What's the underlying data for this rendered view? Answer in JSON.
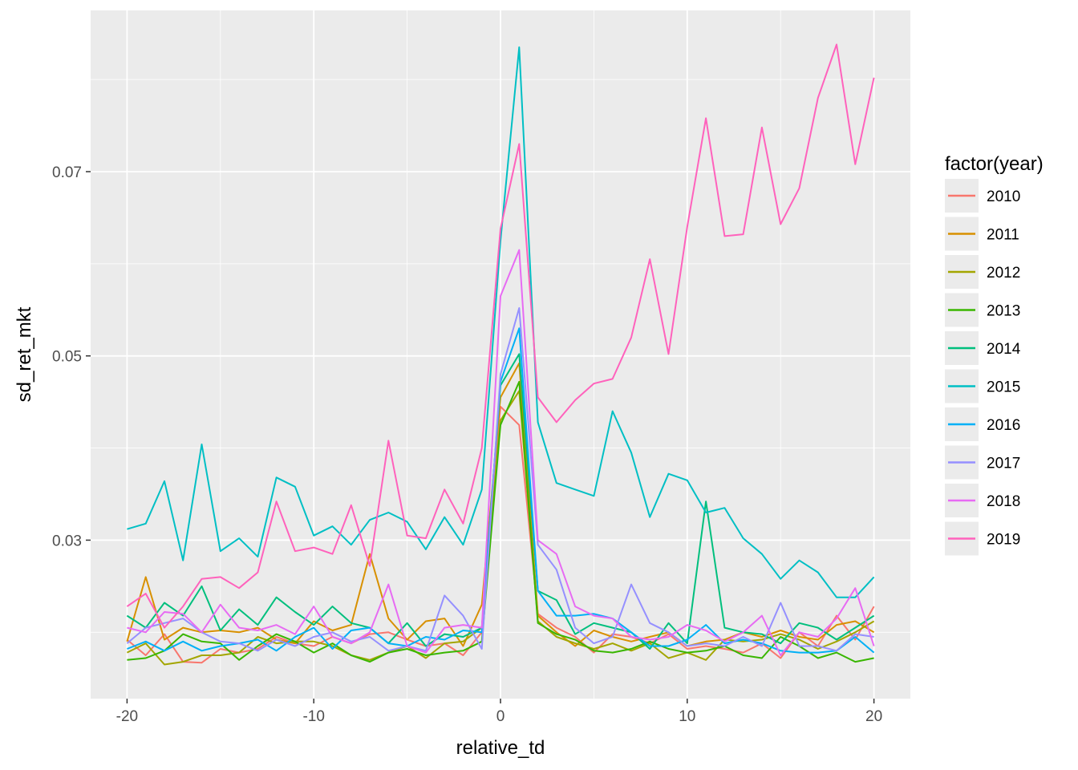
{
  "chart_data": {
    "type": "line",
    "title": "",
    "xlabel": "relative_td",
    "ylabel": "sd_ret_mkt",
    "xlim": [
      -21.95,
      21.95
    ],
    "ylim": [
      0.0128,
      0.0875
    ],
    "x_ticks": [
      -20,
      -10,
      0,
      10,
      20
    ],
    "x_tick_labels": [
      "-20",
      "-10",
      "0",
      "10",
      "20"
    ],
    "y_ticks": [
      0.03,
      0.05,
      0.07
    ],
    "y_tick_labels": [
      "0.03",
      "0.05",
      "0.07"
    ],
    "grid": true,
    "background": "#ebebeb",
    "legend": {
      "title": "factor(year)",
      "position": "right"
    },
    "x": [
      -20,
      -19,
      -18,
      -17,
      -16,
      -15,
      -14,
      -13,
      -12,
      -11,
      -10,
      -9,
      -8,
      -7,
      -6,
      -5,
      -4,
      -3,
      -2,
      -1,
      0,
      1,
      2,
      3,
      4,
      5,
      6,
      7,
      8,
      9,
      10,
      11,
      12,
      13,
      14,
      15,
      16,
      17,
      18,
      19,
      20
    ],
    "series": [
      {
        "name": "2010",
        "color": "#F8766D",
        "values": [
          0.0192,
          0.0175,
          0.0198,
          0.0168,
          0.0167,
          0.0182,
          0.0178,
          0.0182,
          0.0195,
          0.0188,
          0.0185,
          0.0195,
          0.0188,
          0.0198,
          0.02,
          0.0192,
          0.0185,
          0.0188,
          0.0175,
          0.02,
          0.0445,
          0.0425,
          0.022,
          0.0205,
          0.0195,
          0.0178,
          0.0198,
          0.0195,
          0.0188,
          0.0198,
          0.0182,
          0.0185,
          0.0182,
          0.0178,
          0.0188,
          0.0172,
          0.02,
          0.0185,
          0.0218,
          0.0192,
          0.0228
        ]
      },
      {
        "name": "2011",
        "color": "#D89000",
        "values": [
          0.019,
          0.026,
          0.0192,
          0.0205,
          0.02,
          0.0202,
          0.02,
          0.0205,
          0.0192,
          0.0188,
          0.0212,
          0.0202,
          0.0208,
          0.0285,
          0.0215,
          0.0192,
          0.0212,
          0.0215,
          0.0185,
          0.023,
          0.0455,
          0.0492,
          0.0218,
          0.02,
          0.0185,
          0.0202,
          0.0195,
          0.019,
          0.0195,
          0.02,
          0.0185,
          0.019,
          0.0192,
          0.02,
          0.0195,
          0.0202,
          0.0195,
          0.0192,
          0.0208,
          0.0212,
          0.02
        ]
      },
      {
        "name": "2012",
        "color": "#A3A500",
        "values": [
          0.0178,
          0.0188,
          0.0165,
          0.0168,
          0.0175,
          0.0175,
          0.0178,
          0.0195,
          0.0188,
          0.019,
          0.019,
          0.0185,
          0.0175,
          0.017,
          0.0178,
          0.0185,
          0.0172,
          0.0188,
          0.019,
          0.0205,
          0.043,
          0.0462,
          0.0212,
          0.0195,
          0.0188,
          0.0182,
          0.0188,
          0.018,
          0.0188,
          0.0172,
          0.0178,
          0.017,
          0.0192,
          0.019,
          0.0192,
          0.0198,
          0.0192,
          0.0182,
          0.019,
          0.02,
          0.0212
        ]
      },
      {
        "name": "2013",
        "color": "#39B600",
        "values": [
          0.017,
          0.0172,
          0.018,
          0.0198,
          0.019,
          0.0188,
          0.017,
          0.0185,
          0.0198,
          0.019,
          0.0178,
          0.0188,
          0.0175,
          0.0168,
          0.0178,
          0.0182,
          0.0175,
          0.0178,
          0.018,
          0.019,
          0.0425,
          0.0472,
          0.021,
          0.0198,
          0.0192,
          0.018,
          0.0178,
          0.0182,
          0.019,
          0.0182,
          0.0178,
          0.018,
          0.0185,
          0.0175,
          0.0172,
          0.0195,
          0.0185,
          0.0172,
          0.0178,
          0.0168,
          0.0172
        ]
      },
      {
        "name": "2014",
        "color": "#00BF7D",
        "values": [
          0.0218,
          0.0205,
          0.0232,
          0.0218,
          0.025,
          0.0202,
          0.0225,
          0.0208,
          0.0238,
          0.0222,
          0.0208,
          0.0228,
          0.021,
          0.0205,
          0.0188,
          0.021,
          0.0185,
          0.0198,
          0.0195,
          0.0205,
          0.0468,
          0.0502,
          0.0245,
          0.0235,
          0.0198,
          0.021,
          0.0205,
          0.02,
          0.0182,
          0.021,
          0.0188,
          0.0342,
          0.0205,
          0.02,
          0.0198,
          0.0188,
          0.021,
          0.0205,
          0.0192,
          0.0205,
          0.0218
        ]
      },
      {
        "name": "2015",
        "color": "#00BFC4",
        "values": [
          0.0312,
          0.0318,
          0.0364,
          0.0278,
          0.0404,
          0.0288,
          0.0302,
          0.0282,
          0.0368,
          0.0358,
          0.0305,
          0.0315,
          0.0295,
          0.0322,
          0.033,
          0.032,
          0.029,
          0.0325,
          0.0295,
          0.0355,
          0.0625,
          0.0835,
          0.0428,
          0.0362,
          0.0355,
          0.0348,
          0.044,
          0.0395,
          0.0325,
          0.0372,
          0.0365,
          0.033,
          0.0335,
          0.0302,
          0.0285,
          0.0258,
          0.0278,
          0.0265,
          0.0238,
          0.0238,
          0.026
        ]
      },
      {
        "name": "2016",
        "color": "#00B0F6",
        "values": [
          0.0182,
          0.019,
          0.018,
          0.019,
          0.018,
          0.0185,
          0.0188,
          0.0192,
          0.018,
          0.0195,
          0.0205,
          0.0182,
          0.0202,
          0.0205,
          0.0188,
          0.0185,
          0.0195,
          0.0192,
          0.0202,
          0.02,
          0.0472,
          0.053,
          0.0245,
          0.0218,
          0.0218,
          0.022,
          0.0215,
          0.02,
          0.0185,
          0.0185,
          0.0192,
          0.0208,
          0.0188,
          0.0192,
          0.0188,
          0.018,
          0.0178,
          0.0178,
          0.018,
          0.0195,
          0.0178
        ]
      },
      {
        "name": "2017",
        "color": "#9590FF",
        "values": [
          0.0188,
          0.0205,
          0.021,
          0.0215,
          0.02,
          0.019,
          0.0188,
          0.018,
          0.0192,
          0.0185,
          0.0195,
          0.02,
          0.019,
          0.0195,
          0.018,
          0.0185,
          0.018,
          0.024,
          0.0218,
          0.0182,
          0.048,
          0.0552,
          0.0295,
          0.0268,
          0.0205,
          0.0188,
          0.0195,
          0.0252,
          0.021,
          0.02,
          0.0185,
          0.0188,
          0.0185,
          0.0195,
          0.0185,
          0.0232,
          0.0185,
          0.0185,
          0.018,
          0.0198,
          0.0195
        ]
      },
      {
        "name": "2018",
        "color": "#E76BF3",
        "values": [
          0.0205,
          0.02,
          0.0222,
          0.022,
          0.02,
          0.023,
          0.0205,
          0.0202,
          0.0208,
          0.0198,
          0.0228,
          0.0195,
          0.0188,
          0.02,
          0.0252,
          0.0185,
          0.0178,
          0.0205,
          0.0208,
          0.0205,
          0.0565,
          0.0615,
          0.03,
          0.0285,
          0.0228,
          0.0218,
          0.0215,
          0.0195,
          0.0192,
          0.0195,
          0.0208,
          0.0202,
          0.019,
          0.02,
          0.0218,
          0.0175,
          0.02,
          0.0195,
          0.0215,
          0.0248,
          0.0185
        ]
      },
      {
        "name": "2019",
        "color": "#FF62BC",
        "values": [
          0.0228,
          0.0242,
          0.0205,
          0.0228,
          0.0258,
          0.026,
          0.0248,
          0.0265,
          0.0342,
          0.0288,
          0.0292,
          0.0285,
          0.0338,
          0.0272,
          0.0408,
          0.0305,
          0.0302,
          0.0355,
          0.0318,
          0.04,
          0.0638,
          0.073,
          0.0455,
          0.0428,
          0.0452,
          0.047,
          0.0475,
          0.052,
          0.0605,
          0.0502,
          0.064,
          0.0758,
          0.063,
          0.0632,
          0.0748,
          0.0643,
          0.0682,
          0.078,
          0.0838,
          0.0708,
          0.0802
        ]
      }
    ]
  }
}
